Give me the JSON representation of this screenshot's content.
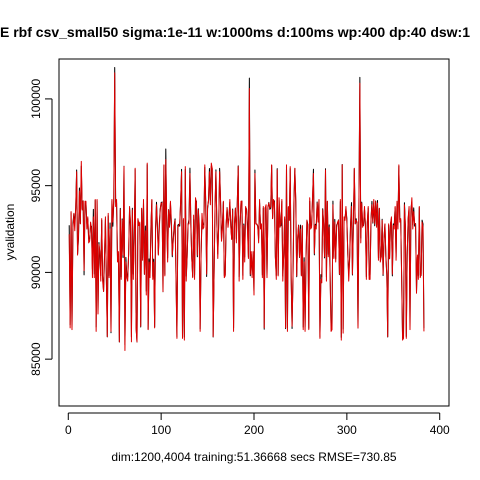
{
  "chart_data": {
    "type": "line",
    "title": "E  rbf csv_small50 sigma:1e-11 w:1000ms d:100ms wp:400 dp:40 dsw:1",
    "xlabel": "dim:1200,4004 training:51.36668 secs RMSE=730.85",
    "ylabel": "yvalidation",
    "xlim": [
      -10,
      410
    ],
    "ylim": [
      82300,
      102300
    ],
    "xticks": [
      0,
      100,
      200,
      300,
      400
    ],
    "yticks": [
      85000,
      90000,
      95000,
      100000
    ],
    "xtick_labels": [
      "0",
      "100",
      "200",
      "300",
      "400"
    ],
    "ytick_labels": [
      "85000",
      "90000",
      "95000",
      "100000"
    ],
    "grid": false,
    "series": [
      {
        "color": "#000000",
        "x_start": 1,
        "x_step": 1,
        "values": [
          92717,
          86981,
          93437,
          86723,
          92849,
          93367,
          92802,
          93734,
          95906,
          91063,
          91953,
          94864,
          92823,
          96127,
          93659,
          94125,
          89861,
          94069,
          94005,
          92810,
          93101,
          91949,
          91911,
          92669,
          92662,
          90185,
          93632,
          89910,
          94151,
          86854,
          94144,
          87739,
          91722,
          90834,
          89818,
          93009,
          89779,
          88911,
          90823,
          93051,
          89736,
          86286,
          93264,
          89808,
          92849,
          86521,
          94123,
          92662,
          94065,
          101810,
          94053,
          94011,
          90859,
          91053,
          85989,
          93689,
          89734,
          93086,
          90859,
          96119,
          85821,
          90869,
          89901,
          89728,
          91050,
          93697,
          92669,
          86286,
          93698,
          89903,
          91955,
          95929,
          86842,
          85989,
          93056,
          92732,
          92806,
          86851,
          93674,
          90846,
          94042,
          89887,
          92677,
          88920,
          96212,
          86728,
          90777,
          89919,
          92653,
          94163,
          89773,
          90767,
          86858,
          92669,
          94041,
          92700,
          91039,
          92756,
          93654,
          94019,
          94060,
          88884,
          96175,
          89877,
          97110,
          92797,
          90835,
          93617,
          92675,
          94006,
          92684,
          90902,
          91906,
          92683,
          93084,
          89863,
          86281,
          92726,
          92772,
          92668,
          94030,
          95937,
          86302,
          93012,
          86272,
          95931,
          89787,
          90865,
          92757,
          93062,
          96010,
          92834,
          90812,
          89759,
          93052,
          89853,
          94112,
          94114,
          90906,
          93668,
          92749,
          86744,
          91037,
          93079,
          92774,
          92722,
          96061,
          94154,
          89766,
          93663,
          94168,
          95989,
          94154,
          96115,
          95975,
          86279,
          89837,
          93664,
          95907,
          92796,
          91063,
          92806,
          95996,
          94075,
          91900,
          92774,
          94048,
          89823,
          89858,
          92722,
          93736,
          92831,
          93078,
          94049,
          92728,
          91937,
          93652,
          86802,
          92820,
          93704,
          91937,
          94030,
          96143,
          89758,
          92696,
          94034,
          94113,
          89830,
          92791,
          90889,
          93730,
          93653,
          92788,
          90881,
          101197,
          89810,
          91036,
          89863,
          91013,
          88887,
          95900,
          92808,
          92769,
          92678,
          91964,
          94012,
          92718,
          92692,
          89848,
          93705,
          86727,
          93725,
          93694,
          89750,
          93736,
          94033,
          93641,
          93697,
          96176,
          93100,
          94124,
          94123,
          90895,
          89824,
          95984,
          89848,
          94150,
          92778,
          92683,
          94103,
          89787,
          91041,
          93087,
          86761,
          96141,
          86813,
          93740,
          93011,
          95984,
          89779,
          86770,
          89840,
          94153,
          95988,
          94060,
          89752,
          91938,
          92725,
          90867,
          92727,
          89839,
          92669,
          86849,
          90843,
          86865,
          90803,
          93010,
          92757,
          86771,
          94098,
          92686,
          92722,
          94130,
          95944,
          91011,
          92773,
          92685,
          94055,
          93091,
          94082,
          86271,
          89872,
          89745,
          93666,
          92812,
          90836,
          95974,
          89742,
          94095,
          91042,
          92739,
          89835,
          86818,
          86822,
          94107,
          90864,
          93058,
          90789,
          92735,
          92804,
          93024,
          89870,
          94088,
          86255,
          96223,
          86728,
          93025,
          93086,
          93657,
          93089,
          91036,
          89846,
          90901,
          92834,
          94019,
          89854,
          92734,
          95972,
          92796,
          93092,
          92752,
          86799,
          94134,
          101240,
          91978,
          94050,
          92725,
          92708,
          93649,
          92745,
          89749,
          92825,
          93709,
          89830,
          89862,
          93010,
          94095,
          92841,
          94009,
          92690,
          94117,
          92730,
          94144,
          90842,
          93686,
          90837,
          90883,
          93061,
          89822,
          91971,
          92774,
          90895,
          89855,
          86279,
          92715,
          90785,
          92788,
          93095,
          89801,
          92796,
          92734,
          93731,
          90865,
          94040,
          92742,
          96125,
          93045,
          93020,
          89831,
          86226,
          86271,
          94011,
          92743,
          86306,
          91033,
          93039,
          93668,
          86784,
          93675,
          94050,
          92750,
          93720,
          92669,
          92815,
          88885,
          90898,
          89800,
          93741,
          89854,
          89827,
          93014,
          92787,
          86784
        ]
      },
      {
        "color": "#dd0000",
        "x_start": 1,
        "x_step": 1,
        "values": [
          92200,
          86800,
          93500,
          86700,
          92500,
          93400,
          92400,
          93700,
          95800,
          91000,
          92200,
          94700,
          92800,
          96400,
          93600,
          94100,
          90100,
          94100,
          94100,
          92500,
          93200,
          91700,
          91800,
          92900,
          92500,
          89700,
          93200,
          89700,
          94200,
          86600,
          94200,
          87600,
          91600,
          91200,
          89500,
          93100,
          89500,
          88900,
          91000,
          93200,
          89600,
          86300,
          93400,
          89700,
          92500,
          86600,
          94200,
          92900,
          94300,
          101500,
          93800,
          94200,
          90600,
          91200,
          86000,
          93600,
          89600,
          93000,
          91000,
          96100,
          85500,
          90600,
          89700,
          89500,
          91100,
          93800,
          92900,
          86000,
          93600,
          89600,
          91800,
          96000,
          86800,
          86000,
          93100,
          92700,
          92900,
          86900,
          93700,
          90700,
          94200,
          89900,
          92400,
          88700,
          96300,
          86700,
          90600,
          89700,
          92500,
          94200,
          89600,
          90600,
          86800,
          92300,
          93900,
          92600,
          91000,
          92500,
          93600,
          94000,
          94000,
          88900,
          96200,
          89800,
          96500,
          93100,
          90600,
          93600,
          92600,
          94100,
          93000,
          91000,
          91800,
          92500,
          93000,
          89600,
          86200,
          92600,
          92700,
          92800,
          94100,
          95800,
          86200,
          93100,
          86100,
          96100,
          89500,
          91000,
          92800,
          92800,
          95700,
          92600,
          90800,
          89700,
          93300,
          89600,
          94300,
          94000,
          91000,
          93600,
          92500,
          86600,
          91100,
          93400,
          92500,
          92600,
          96200,
          93900,
          89900,
          93800,
          94100,
          95800,
          93900,
          96300,
          96000,
          86300,
          89800,
          93700,
          95800,
          92800,
          90800,
          92700,
          95800,
          94100,
          91800,
          92500,
          94100,
          89700,
          89800,
          92800,
          93700,
          92600,
          93100,
          94200,
          92600,
          91900,
          93600,
          86600,
          92800,
          93700,
          91700,
          94000,
          96100,
          89500,
          92700,
          94100,
          94100,
          89600,
          92700,
          90600,
          93800,
          93600,
          92400,
          90800,
          100600,
          89900,
          91200,
          89700,
          91200,
          88700,
          95700,
          92800,
          92800,
          92700,
          91700,
          94200,
          92500,
          92800,
          89700,
          93800,
          86800,
          93700,
          93900,
          89700,
          93800,
          94000,
          93700,
          93800,
          96200,
          93100,
          94200,
          94000,
          90900,
          89600,
          95900,
          89800,
          94300,
          92600,
          92900,
          94200,
          89500,
          91100,
          93200,
          86800,
          96200,
          86600,
          93800,
          93000,
          96100,
          89700,
          86900,
          89700,
          94000,
          96000,
          94100,
          89800,
          92000,
          92700,
          90900,
          92500,
          89800,
          92700,
          86700,
          90600,
          86600,
          90900,
          93000,
          92600,
          86700,
          94300,
          92500,
          92600,
          94300,
          95700,
          91100,
          92700,
          92500,
          94000,
          92900,
          94200,
          86200,
          89600,
          89400,
          93600,
          92700,
          90900,
          95900,
          89500,
          94100,
          90900,
          92600,
          89600,
          86600,
          86700,
          93900,
          90800,
          92900,
          90600,
          92600,
          92900,
          93000,
          89900,
          94200,
          86100,
          96200,
          86500,
          93200,
          93000,
          93800,
          92900,
          91200,
          89500,
          90700,
          92600,
          93800,
          89900,
          92500,
          96000,
          92800,
          93000,
          92900,
          86800,
          93900,
          100900,
          91700,
          94000,
          92600,
          92800,
          93800,
          92700,
          89600,
          92900,
          93800,
          89600,
          89600,
          93100,
          93900,
          92900,
          94200,
          92800,
          94100,
          92600,
          94000,
          90700,
          93700,
          90600,
          90900,
          93000,
          89900,
          91900,
          92800,
          91000,
          89900,
          86300,
          92800,
          90800,
          92800,
          93200,
          89900,
          92700,
          92500,
          93800,
          90700,
          94100,
          92500,
          96200,
          92900,
          93100,
          89700,
          86100,
          86200,
          93900,
          92600,
          86200,
          91000,
          93100,
          93800,
          86700,
          93500,
          94300,
          92500,
          93500,
          92800,
          92800,
          88800,
          91000,
          89600,
          93800,
          89700,
          89900,
          92900,
          92600,
          86600
        ]
      }
    ]
  }
}
